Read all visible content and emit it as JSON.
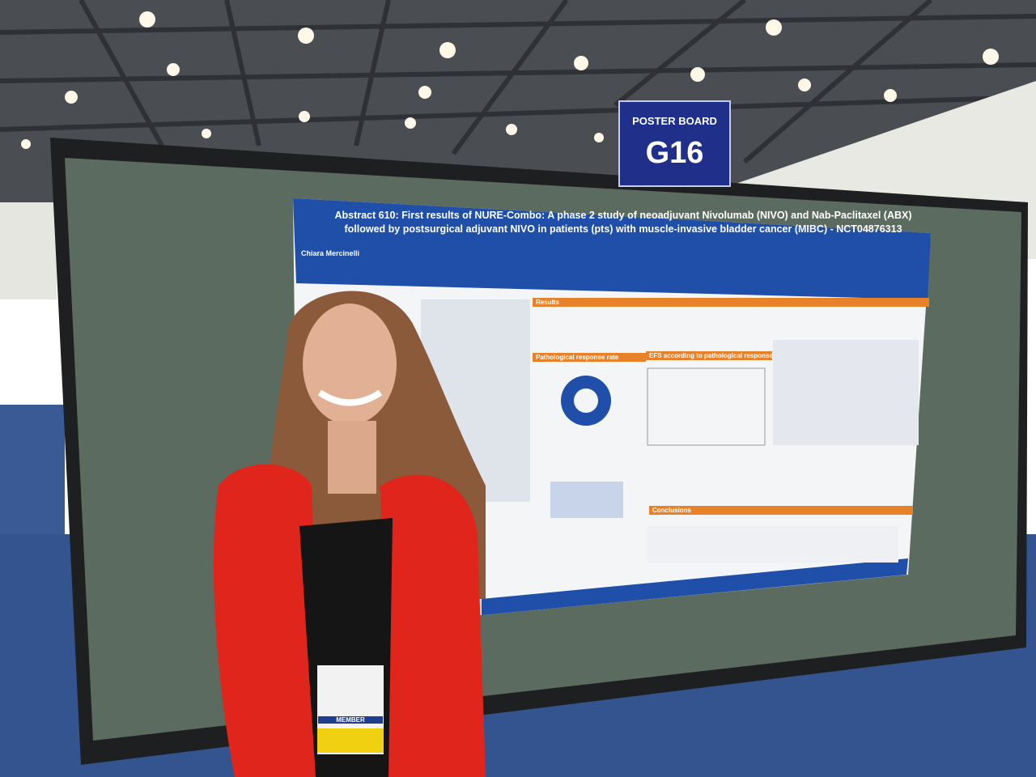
{
  "sign": {
    "label": "POSTER BOARD",
    "number": "G16"
  },
  "poster": {
    "title": "Abstract 610: First results of NURE-Combo: A phase 2 study of neoadjuvant Nivolumab (NIVO) and Nab-Paclitaxel (ABX) followed by postsurgical adjuvant NIVO in patients (pts) with muscle-invasive bladder cancer (MIBC) - NCT04876313",
    "author": "Chiara Mercinelli",
    "sections": [
      "Results",
      "Pathological response rate",
      "EFS according to pathological response",
      "Conclusions"
    ]
  },
  "badge": {
    "role": "MEMBER"
  }
}
